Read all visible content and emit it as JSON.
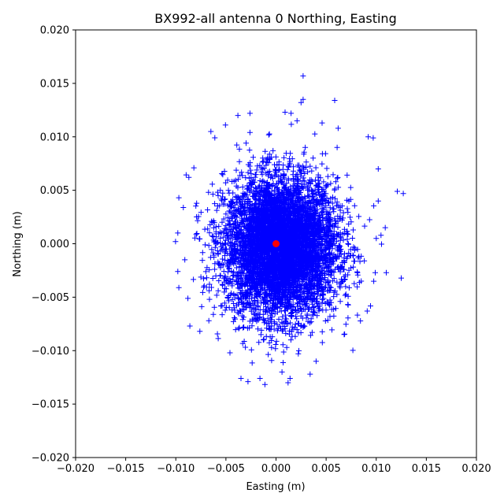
{
  "chart_data": {
    "type": "scatter",
    "title": "BX992-all antenna 0 Northing, Easting",
    "xlabel": "Easting (m)",
    "ylabel": "Northing (m)",
    "xlim": [
      -0.02,
      0.02
    ],
    "ylim": [
      -0.02,
      0.02
    ],
    "xticks": [
      "−0.020",
      "−0.015",
      "−0.010",
      "−0.005",
      "0.000",
      "0.005",
      "0.010",
      "0.015",
      "0.020"
    ],
    "yticks": [
      "−0.020",
      "−0.015",
      "−0.010",
      "−0.005",
      "0.000",
      "0.005",
      "0.010",
      "0.015",
      "0.020"
    ],
    "grid": false,
    "series": [
      {
        "marker": "plus",
        "color": "#0000ff",
        "distribution": "dense elliptical cloud of thousands of samples",
        "center": [
          0.0005,
          -0.0003
        ],
        "std": [
          0.0028,
          0.0032
        ],
        "outliers": [
          [
            0.0027,
            0.0157
          ],
          [
            0.0027,
            0.0135
          ],
          [
            0.0025,
            0.0132
          ],
          [
            -0.0026,
            0.0122
          ],
          [
            0.0009,
            0.0123
          ],
          [
            0.0015,
            0.0122
          ],
          [
            -0.0038,
            0.012
          ],
          [
            0.0021,
            0.0115
          ],
          [
            0.0046,
            0.0113
          ],
          [
            0.0062,
            0.0108
          ],
          [
            -0.0065,
            0.0105
          ],
          [
            -0.0026,
            0.0104
          ],
          [
            0.0092,
            0.01
          ],
          [
            0.0097,
            0.0099
          ],
          [
            0.0061,
            0.009
          ],
          [
            0.0102,
            0.007
          ],
          [
            0.0121,
            0.0049
          ],
          [
            0.0127,
            0.0047
          ],
          [
            0.0102,
            0.004
          ],
          [
            0.0109,
            0.0015
          ],
          [
            0.01,
            0.0005
          ],
          [
            0.011,
            -0.0027
          ],
          [
            0.0099,
            -0.0027
          ],
          [
            0.0091,
            -0.0063
          ],
          [
            0.0085,
            -0.0035
          ],
          [
            -0.0097,
            0.0043
          ],
          [
            -0.0082,
            0.0071
          ],
          [
            -0.0087,
            0.0062
          ],
          [
            -0.0098,
            0.001
          ],
          [
            -0.0091,
            -0.0015
          ],
          [
            -0.0098,
            -0.0026
          ],
          [
            -0.0097,
            -0.0041
          ],
          [
            -0.0086,
            -0.0077
          ],
          [
            -0.0076,
            -0.0082
          ],
          [
            -0.0067,
            -0.0072
          ],
          [
            -0.0035,
            -0.0126
          ],
          [
            -0.0028,
            -0.0129
          ],
          [
            -0.0016,
            -0.0126
          ],
          [
            0.0012,
            -0.013
          ],
          [
            0.0014,
            -0.0126
          ],
          [
            0.0034,
            -0.0122
          ],
          [
            0.0006,
            -0.012
          ],
          [
            -0.0046,
            -0.0102
          ],
          [
            0.004,
            -0.011
          ]
        ]
      },
      {
        "marker": "circle",
        "color": "#ff0000",
        "points": [
          [
            0.0,
            0.0
          ]
        ]
      }
    ]
  }
}
